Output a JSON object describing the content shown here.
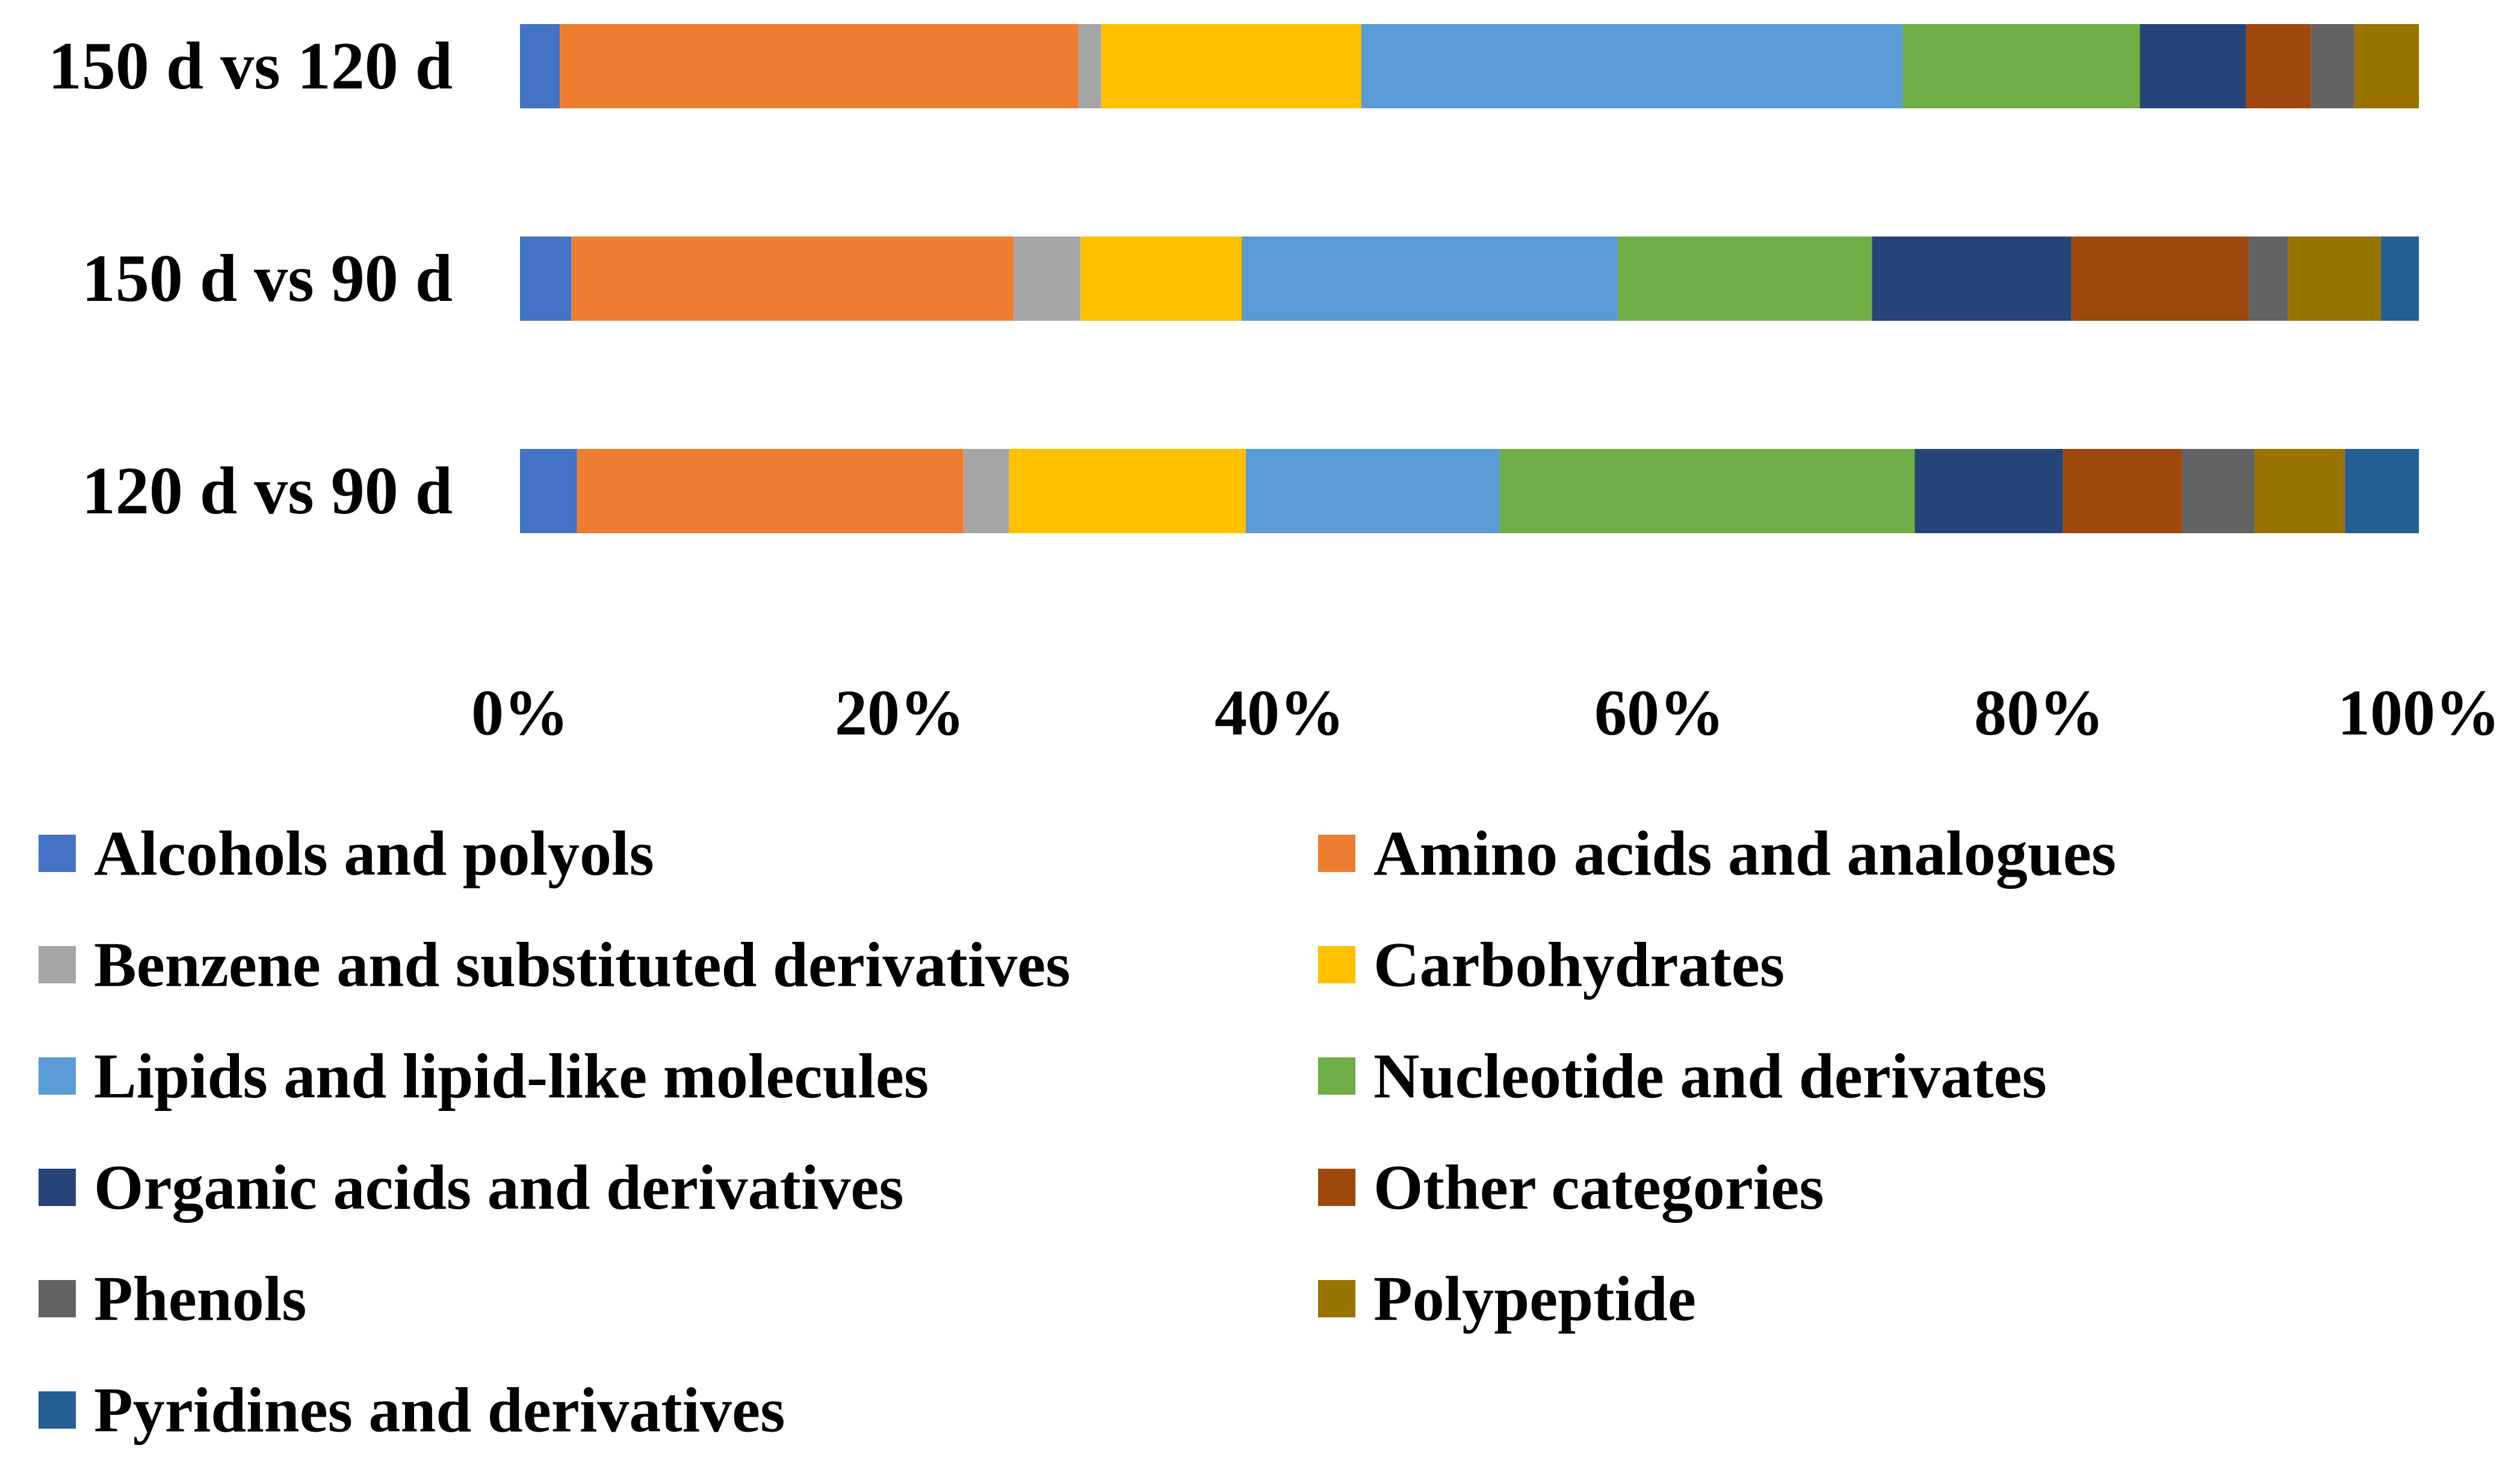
{
  "chart_data": {
    "type": "bar",
    "orientation": "horizontal",
    "stacked": "percent",
    "title": "",
    "xlabel": "",
    "ylabel": "",
    "xlim": [
      0,
      100
    ],
    "x_ticks": [
      "0%",
      "20%",
      "40%",
      "60%",
      "80%",
      "100%"
    ],
    "grid": false,
    "legend_position": "bottom",
    "categories": [
      "150 d vs 120 d",
      "150 d vs 90 d",
      "120 d vs 90 d"
    ],
    "series": [
      {
        "name": "Alcohols and polyols",
        "color": "#4472C4",
        "values": [
          2.1,
          2.7,
          3.0
        ]
      },
      {
        "name": "Amino acids and analogues",
        "color": "#ED7D31",
        "values": [
          27.3,
          23.3,
          20.4
        ]
      },
      {
        "name": "Benzene and substituted derivatives",
        "color": "#A5A5A5",
        "values": [
          1.2,
          3.5,
          2.4
        ]
      },
      {
        "name": "Carbohydrates",
        "color": "#FFC000",
        "values": [
          13.7,
          8.5,
          12.5
        ]
      },
      {
        "name": "Lipids and lipid-like molecules",
        "color": "#5B9BD5",
        "values": [
          28.5,
          19.8,
          13.4
        ]
      },
      {
        "name": "Nucleotide and derivates",
        "color": "#70AD47",
        "values": [
          12.5,
          13.4,
          21.9
        ]
      },
      {
        "name": "Organic acids and derivatives",
        "color": "#264478",
        "values": [
          5.6,
          10.5,
          7.8
        ]
      },
      {
        "name": "Other categories",
        "color": "#9E480E",
        "values": [
          3.4,
          9.3,
          6.3
        ]
      },
      {
        "name": "Phenols",
        "color": "#636363",
        "values": [
          2.3,
          2.1,
          3.8
        ]
      },
      {
        "name": "Polypeptide",
        "color": "#997300",
        "values": [
          3.4,
          4.9,
          4.8
        ]
      },
      {
        "name": "Pyridines and derivatives",
        "color": "#255E91",
        "values": [
          0.0,
          2.0,
          3.9
        ]
      }
    ]
  }
}
